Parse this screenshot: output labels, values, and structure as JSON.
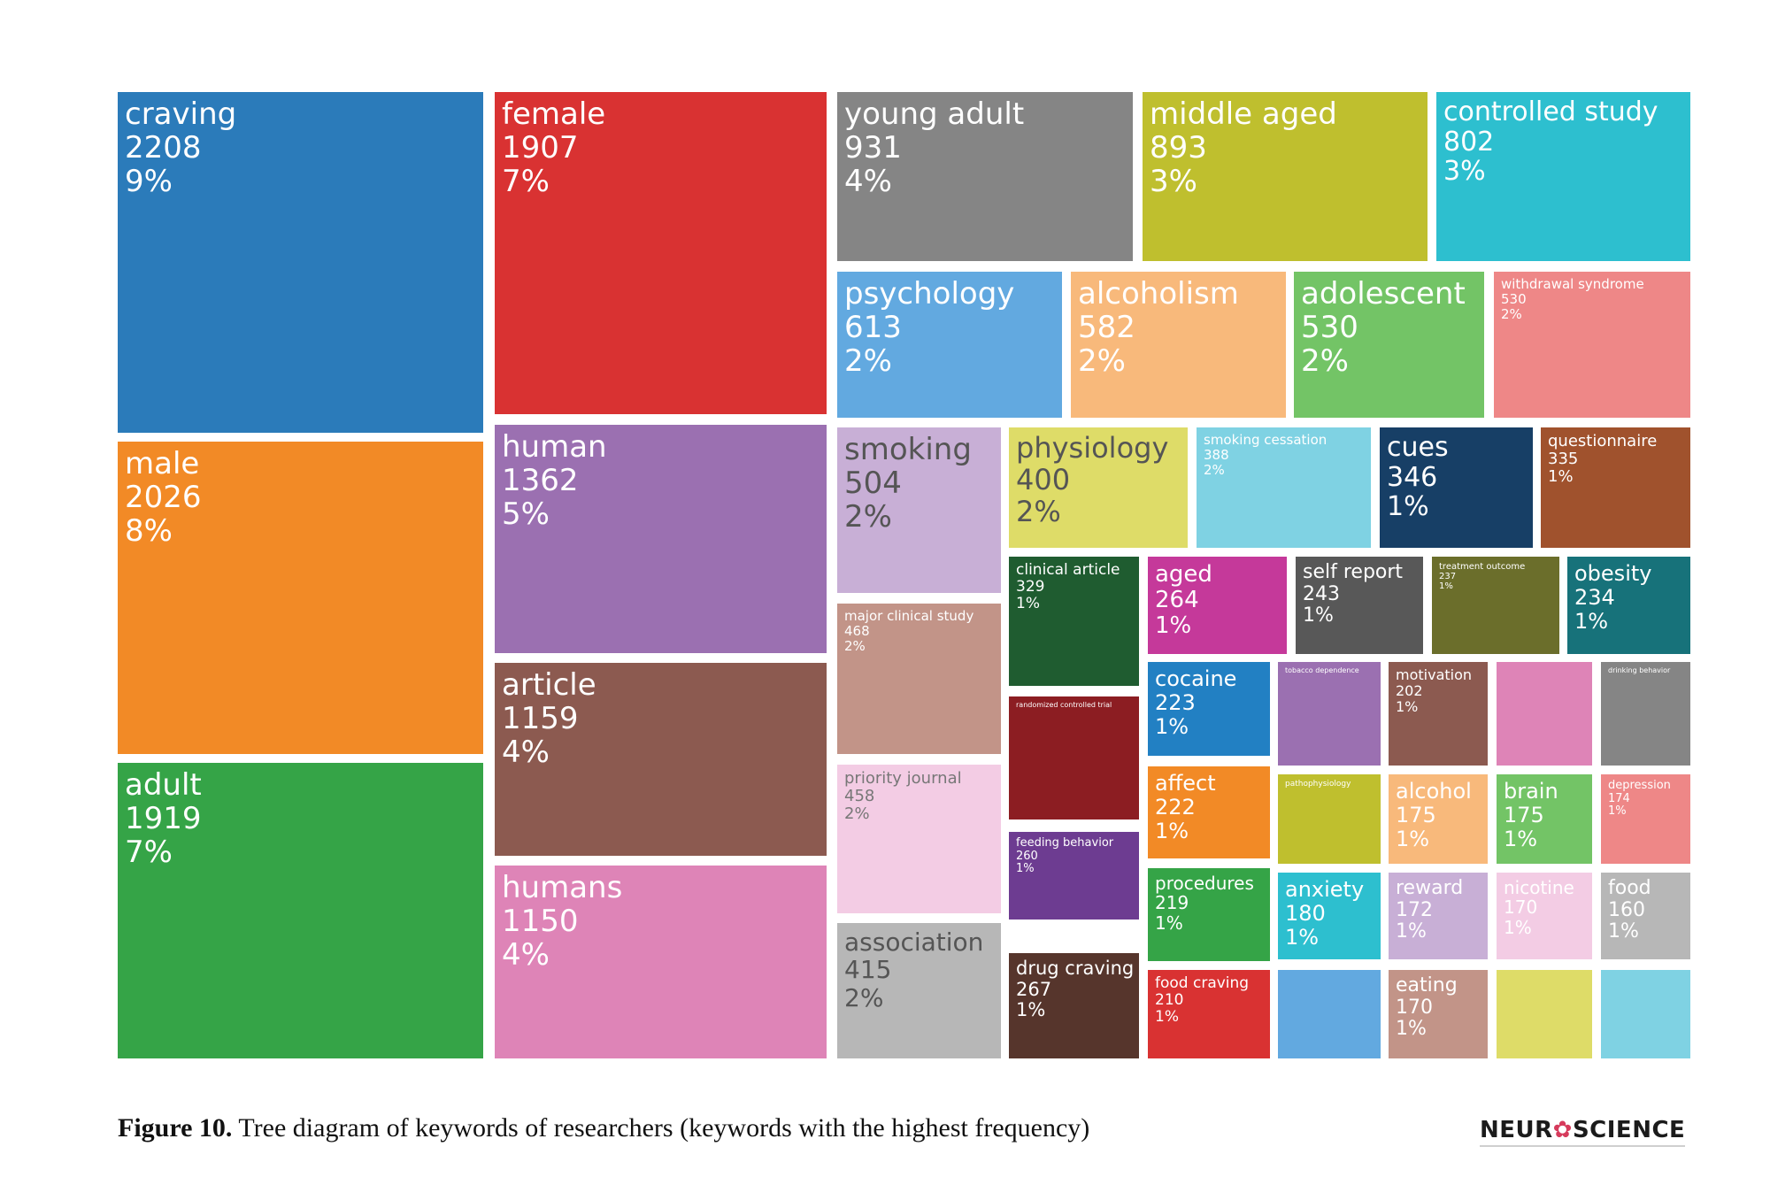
{
  "chart_data": {
    "type": "treemap",
    "items": [
      {
        "label": "craving",
        "value": "2208",
        "pct": "9%",
        "color": "#2b7bba"
      },
      {
        "label": "male",
        "value": "2026",
        "pct": "8%",
        "color": "#f28a26"
      },
      {
        "label": "adult",
        "value": "1919",
        "pct": "7%",
        "color": "#35a447"
      },
      {
        "label": "female",
        "value": "1907",
        "pct": "7%",
        "color": "#d93232"
      },
      {
        "label": "human",
        "value": "1362",
        "pct": "5%",
        "color": "#9b70b1"
      },
      {
        "label": "article",
        "value": "1159",
        "pct": "4%",
        "color": "#8c5a50"
      },
      {
        "label": "humans",
        "value": "1150",
        "pct": "4%",
        "color": "#de84b7"
      },
      {
        "label": "young adult",
        "value": "931",
        "pct": "4%",
        "color": "#858585"
      },
      {
        "label": "middle aged",
        "value": "893",
        "pct": "3%",
        "color": "#bfbf2e"
      },
      {
        "label": "controlled study",
        "value": "802",
        "pct": "3%",
        "color": "#2dbfcf"
      },
      {
        "label": "psychology",
        "value": "613",
        "pct": "2%",
        "color": "#62a9e0"
      },
      {
        "label": "alcoholism",
        "value": "582",
        "pct": "2%",
        "color": "#f8b97b"
      },
      {
        "label": "adolescent",
        "value": "530",
        "pct": "2%",
        "color": "#73c466"
      },
      {
        "label": "withdrawal syndrome",
        "value": "530",
        "pct": "2%",
        "color": "#ee8787"
      },
      {
        "label": "smoking",
        "value": "504",
        "pct": "2%",
        "color": "#c8afd6"
      },
      {
        "label": "physiology",
        "value": "400",
        "pct": "2%",
        "color": "#dedc68"
      },
      {
        "label": "smoking cessation",
        "value": "388",
        "pct": "2%",
        "color": "#7fd2e3"
      },
      {
        "label": "cues",
        "value": "346",
        "pct": "1%",
        "color": "#173f66"
      },
      {
        "label": "questionnaire",
        "value": "335",
        "pct": "1%",
        "color": "#a0522d"
      },
      {
        "label": "major clinical study",
        "value": "468",
        "pct": "2%",
        "color": "#c29488"
      },
      {
        "label": "priority journal",
        "value": "458",
        "pct": "2%",
        "color": "#f3cce4"
      },
      {
        "label": "association",
        "value": "415",
        "pct": "2%",
        "color": "#b7b7b7"
      },
      {
        "label": "clinical article",
        "value": "329",
        "pct": "1%",
        "color": "#1f5c30"
      },
      {
        "label": "aged",
        "value": "264",
        "pct": "1%",
        "color": "#c5399a"
      },
      {
        "label": "self report",
        "value": "243",
        "pct": "1%",
        "color": "#585858"
      },
      {
        "label": "treatment outcome",
        "value": "237",
        "pct": "1%",
        "color": "#6b6e2b"
      },
      {
        "label": "obesity",
        "value": "234",
        "pct": "1%",
        "color": "#17727a"
      },
      {
        "label": "randomized controlled trial",
        "value": "",
        "pct": "",
        "color": "#8c1d22"
      },
      {
        "label": "feeding behavior",
        "value": "260",
        "pct": "1%",
        "color": "#6d3c91"
      },
      {
        "label": "drug craving",
        "value": "267",
        "pct": "1%",
        "color": "#56352c"
      },
      {
        "label": "cocaine",
        "value": "223",
        "pct": "1%",
        "color": "#2280c3"
      },
      {
        "label": "tobacco dependence",
        "value": "",
        "pct": "",
        "color": "#9b70b1"
      },
      {
        "label": "motivation",
        "value": "202",
        "pct": "1%",
        "color": "#8c5a50"
      },
      {
        "label": "",
        "value": "",
        "pct": "",
        "color": "#de84b7"
      },
      {
        "label": "drinking behavior",
        "value": "",
        "pct": "",
        "color": "#858585"
      },
      {
        "label": "affect",
        "value": "222",
        "pct": "1%",
        "color": "#f28a26"
      },
      {
        "label": "pathophysiology",
        "value": "",
        "pct": "",
        "color": "#bfbf2e"
      },
      {
        "label": "alcohol",
        "value": "175",
        "pct": "1%",
        "color": "#f8b97b"
      },
      {
        "label": "brain",
        "value": "175",
        "pct": "1%",
        "color": "#73c466"
      },
      {
        "label": "depression",
        "value": "174",
        "pct": "1%",
        "color": "#ee8787"
      },
      {
        "label": "procedures",
        "value": "219",
        "pct": "1%",
        "color": "#35a447"
      },
      {
        "label": "anxiety",
        "value": "180",
        "pct": "1%",
        "color": "#2dbfcf"
      },
      {
        "label": "reward",
        "value": "172",
        "pct": "1%",
        "color": "#c8afd6"
      },
      {
        "label": "nicotine",
        "value": "170",
        "pct": "1%",
        "color": "#f3cce4"
      },
      {
        "label": "food",
        "value": "160",
        "pct": "1%",
        "color": "#b7b7b7"
      },
      {
        "label": "food craving",
        "value": "210",
        "pct": "1%",
        "color": "#d93232"
      },
      {
        "label": "",
        "value": "",
        "pct": "",
        "color": "#62a9e0"
      },
      {
        "label": "eating",
        "value": "170",
        "pct": "1%",
        "color": "#c29488"
      },
      {
        "label": "",
        "value": "",
        "pct": "",
        "color": "#dedc68"
      },
      {
        "label": "",
        "value": "",
        "pct": "",
        "color": "#7fd2e3"
      }
    ]
  },
  "caption": {
    "label": "Figure 10.",
    "text": " Tree diagram of keywords of researchers (keywords with the highest frequency)"
  },
  "brand": {
    "left": "NEUR",
    "right": "SCIENCE"
  }
}
